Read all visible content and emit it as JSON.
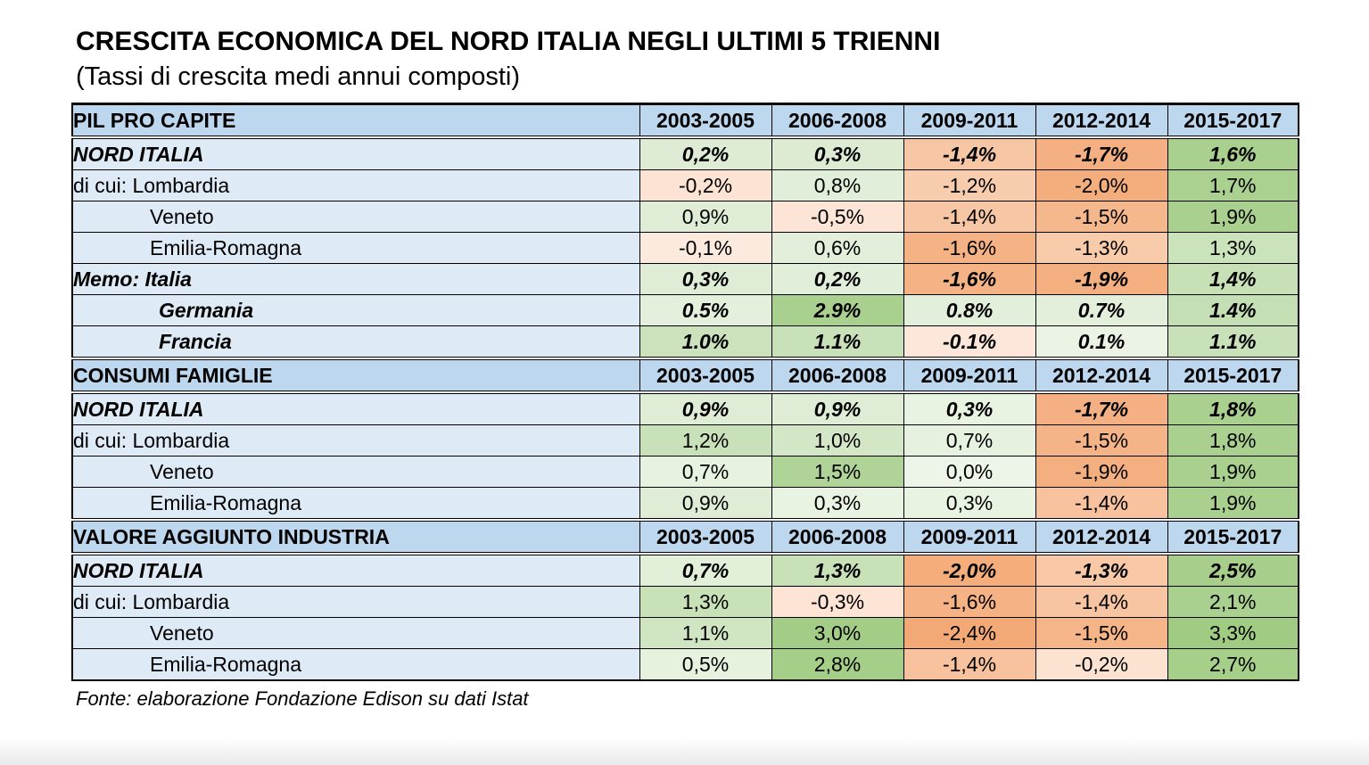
{
  "page": {
    "title": "CRESCITA ECONOMICA DEL NORD ITALIA NEGLI ULTIMI 5 TRIENNI",
    "subtitle": "(Tassi di crescita medi annui composti)",
    "source": "Fonte: elaborazione Fondazione Edison su dati Istat"
  },
  "colors": {
    "header_bg": "#BDD7EE",
    "label_bg": "#DEEAF6",
    "border": "#000000",
    "green_max": "#A9D08E",
    "green_min": "#EDF5E8",
    "orange_max": "#F4AD7B",
    "orange_min": "#FDEADF"
  },
  "years": [
    "2003-2005",
    "2006-2008",
    "2009-2011",
    "2012-2014",
    "2015-2017"
  ],
  "sections": [
    {
      "header": "PIL PRO CAPITE",
      "rows": [
        {
          "label": "NORD ITALIA",
          "style": "emph",
          "indent": 0,
          "cells": [
            {
              "v": "0,2%",
              "bg": "#DEECD5"
            },
            {
              "v": "0,3%",
              "bg": "#DCEBD2"
            },
            {
              "v": "-1,4%",
              "bg": "#F7C7A5"
            },
            {
              "v": "-1,7%",
              "bg": "#F4B083"
            },
            {
              "v": "1,6%",
              "bg": "#A9D08E"
            }
          ]
        },
        {
          "label": "di cui: Lombardia",
          "style": "plain",
          "indent": 0,
          "cells": [
            {
              "v": "-0,2%",
              "bg": "#FCE3D3"
            },
            {
              "v": "0,8%",
              "bg": "#E1EED9"
            },
            {
              "v": "-1,2%",
              "bg": "#F8CDAE"
            },
            {
              "v": "-2,0%",
              "bg": "#F4AE7E"
            },
            {
              "v": "1,7%",
              "bg": "#ABD190"
            }
          ]
        },
        {
          "label": "Veneto",
          "style": "plain",
          "indent": 1,
          "cells": [
            {
              "v": "0,9%",
              "bg": "#DFEDD6"
            },
            {
              "v": "-0,5%",
              "bg": "#FCE5D7"
            },
            {
              "v": "-1,4%",
              "bg": "#F7C7A5"
            },
            {
              "v": "-1,5%",
              "bg": "#F5B88C"
            },
            {
              "v": "1,9%",
              "bg": "#A9D08E"
            }
          ]
        },
        {
          "label": "Emilia-Romagna",
          "style": "plain",
          "indent": 1,
          "cells": [
            {
              "v": "-0,1%",
              "bg": "#FDEADF"
            },
            {
              "v": "0,6%",
              "bg": "#E3EFDB"
            },
            {
              "v": "-1,6%",
              "bg": "#F4B285"
            },
            {
              "v": "-1,3%",
              "bg": "#F8CBAB"
            },
            {
              "v": "1,3%",
              "bg": "#CBE3BB"
            }
          ]
        },
        {
          "label": "Memo: Italia",
          "style": "emph",
          "indent": 0,
          "cells": [
            {
              "v": "0,3%",
              "bg": "#DFEDD6"
            },
            {
              "v": "0,2%",
              "bg": "#E1EEDA"
            },
            {
              "v": "-1,6%",
              "bg": "#F4B285"
            },
            {
              "v": "-1,9%",
              "bg": "#F4AF80"
            },
            {
              "v": "1,4%",
              "bg": "#C7E0B6"
            }
          ]
        },
        {
          "label": "Germania",
          "style": "emph",
          "indent": 2,
          "cells": [
            {
              "v": "0.5%",
              "bg": "#E4F0DC"
            },
            {
              "v": "2.9%",
              "bg": "#A9D08E"
            },
            {
              "v": "0.8%",
              "bg": "#E2EFDA"
            },
            {
              "v": "0.7%",
              "bg": "#E3EFDB"
            },
            {
              "v": "1.4%",
              "bg": "#C5DFB4"
            }
          ]
        },
        {
          "label": "Francia",
          "style": "emph",
          "indent": 2,
          "cells": [
            {
              "v": "1.0%",
              "bg": "#CBE2BC"
            },
            {
              "v": "1.1%",
              "bg": "#C8E1B8"
            },
            {
              "v": "-0.1%",
              "bg": "#FDE7DA"
            },
            {
              "v": "0.1%",
              "bg": "#EAF3E4"
            },
            {
              "v": "1.1%",
              "bg": "#C8E1B8"
            }
          ]
        }
      ]
    },
    {
      "header": "CONSUMI FAMIGLIE",
      "rows": [
        {
          "label": "NORD ITALIA",
          "style": "emph",
          "indent": 0,
          "cells": [
            {
              "v": "0,9%",
              "bg": "#DFEDD6"
            },
            {
              "v": "0,9%",
              "bg": "#DFEDD6"
            },
            {
              "v": "0,3%",
              "bg": "#E9F3E2"
            },
            {
              "v": "-1,7%",
              "bg": "#F4B083"
            },
            {
              "v": "1,8%",
              "bg": "#A9D08E"
            }
          ]
        },
        {
          "label": "di cui: Lombardia",
          "style": "plain",
          "indent": 0,
          "cells": [
            {
              "v": "1,2%",
              "bg": "#C9E1B9"
            },
            {
              "v": "1,0%",
              "bg": "#D3E7C6"
            },
            {
              "v": "0,7%",
              "bg": "#E6F1DF"
            },
            {
              "v": "-1,5%",
              "bg": "#F5B487"
            },
            {
              "v": "1,8%",
              "bg": "#AAD090"
            }
          ]
        },
        {
          "label": "Veneto",
          "style": "plain",
          "indent": 1,
          "cells": [
            {
              "v": "0,7%",
              "bg": "#E7F2E0"
            },
            {
              "v": "1,5%",
              "bg": "#B0D498"
            },
            {
              "v": "0,0%",
              "bg": "#EDF5E8"
            },
            {
              "v": "-1,9%",
              "bg": "#F4AF80"
            },
            {
              "v": "1,9%",
              "bg": "#A9D08E"
            }
          ]
        },
        {
          "label": "Emilia-Romagna",
          "style": "plain",
          "indent": 1,
          "cells": [
            {
              "v": "0,9%",
              "bg": "#DFEDD6"
            },
            {
              "v": "0,3%",
              "bg": "#E9F3E2"
            },
            {
              "v": "0,3%",
              "bg": "#E9F3E2"
            },
            {
              "v": "-1,4%",
              "bg": "#F7C29D"
            },
            {
              "v": "1,9%",
              "bg": "#A9D08E"
            }
          ]
        }
      ]
    },
    {
      "header": "VALORE AGGIUNTO INDUSTRIA",
      "rows": [
        {
          "label": "NORD ITALIA",
          "style": "emph",
          "indent": 0,
          "cells": [
            {
              "v": "0,7%",
              "bg": "#E2EFD9"
            },
            {
              "v": "1,3%",
              "bg": "#C8E1B7"
            },
            {
              "v": "-2,0%",
              "bg": "#F4AD7B"
            },
            {
              "v": "-1,3%",
              "bg": "#F8C8A7"
            },
            {
              "v": "2,5%",
              "bg": "#A7CF8B"
            }
          ]
        },
        {
          "label": "di cui: Lombardia",
          "style": "plain",
          "indent": 0,
          "cells": [
            {
              "v": "1,3%",
              "bg": "#C8E1B7"
            },
            {
              "v": "-0,3%",
              "bg": "#FDE4D5"
            },
            {
              "v": "-1,6%",
              "bg": "#F5B285"
            },
            {
              "v": "-1,4%",
              "bg": "#F7C5A1"
            },
            {
              "v": "2,1%",
              "bg": "#A9D08E"
            }
          ]
        },
        {
          "label": "Veneto",
          "style": "plain",
          "indent": 1,
          "cells": [
            {
              "v": "1,1%",
              "bg": "#D0E5C2"
            },
            {
              "v": "3,0%",
              "bg": "#A3CD86"
            },
            {
              "v": "-2,4%",
              "bg": "#F3A975"
            },
            {
              "v": "-1,5%",
              "bg": "#F5B588"
            },
            {
              "v": "3,3%",
              "bg": "#A0CB82"
            }
          ]
        },
        {
          "label": "Emilia-Romagna",
          "style": "plain",
          "indent": 1,
          "cells": [
            {
              "v": "0,5%",
              "bg": "#E6F1DE"
            },
            {
              "v": "2,8%",
              "bg": "#A5CE88"
            },
            {
              "v": "-1,4%",
              "bg": "#F7C29D"
            },
            {
              "v": "-0,2%",
              "bg": "#FCE2D1"
            },
            {
              "v": "2,7%",
              "bg": "#A6CF8A"
            }
          ]
        }
      ]
    }
  ]
}
